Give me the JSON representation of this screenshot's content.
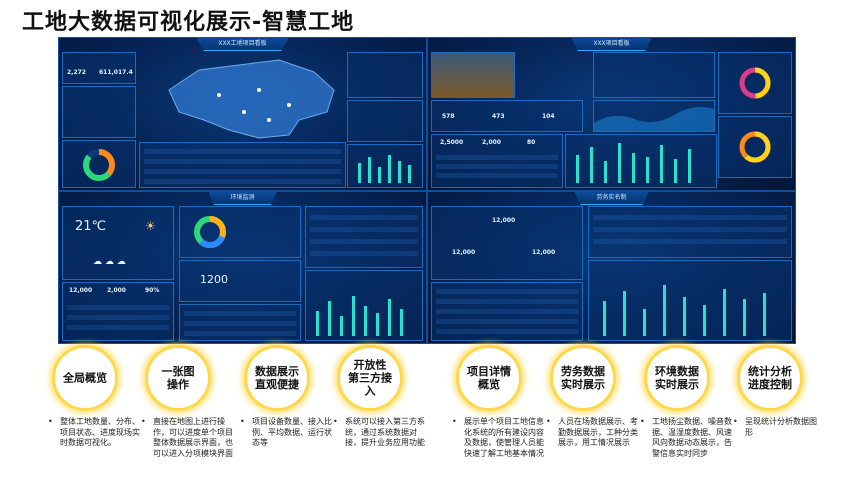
{
  "title": "工地大数据可视化展示-智慧工地",
  "panels": {
    "p1": {
      "title": "XXX工地项目看板",
      "stat1": "2,272",
      "stat2": "611,017.4"
    },
    "p2": {
      "title": "XXX项目看板",
      "s1": "578",
      "s2": "473",
      "s3": "104",
      "a": "2,5000",
      "b": "2,000",
      "c": "80"
    },
    "p3": {
      "title": "环境监测",
      "temp": "21℃",
      "big": "1200",
      "a": "12,000",
      "b": "2,000",
      "c": "90%"
    },
    "p4": {
      "title": "劳务实名制",
      "top": "12,000",
      "left": "12,000",
      "right": "12,000"
    }
  },
  "features": [
    {
      "label": "全局概览",
      "desc": "整体工地数量、分布、项目状态、进度现场实时数据可视化。"
    },
    {
      "label": "一张图\n操作",
      "desc": "直接在地图上进行操作，可以进度单个项目整体数据展示界面，也可以进入分项模块界面"
    },
    {
      "label": "数据展示\n直观便捷",
      "desc": "项目设备数量、接入比例、平均数据、运行状态等"
    },
    {
      "label": "开放性\n第三方接入",
      "desc": "系统可以接入第三方系统，通过系统数据对接，提升业务应用功能"
    },
    {
      "label": "项目详情\n概览",
      "desc": "展示单个项目工地信息化系统的所有建设内容及数据，使管理人员能快速了解工地基本情况"
    },
    {
      "label": "劳务数据\n实时展示",
      "desc": "人员在场数据展示、考勤数据展示，工种分类展示，用工情况展示"
    },
    {
      "label": "环境数据\n实时展示",
      "desc": "工地扬尘数据、噪音数据、温湿度数据、风速风向数据动态展示，告警信息实时同步"
    },
    {
      "label": "统计分析\n进度控制",
      "desc": "呈现统计分析数据图形"
    }
  ]
}
